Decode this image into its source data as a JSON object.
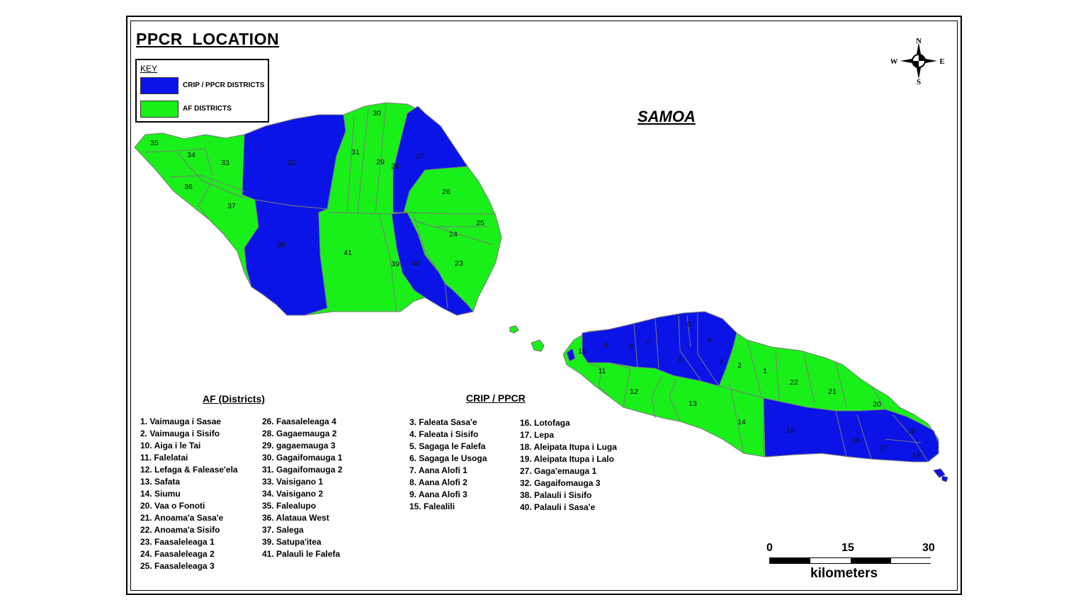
{
  "map": {
    "title": "PPCR  LOCATION",
    "country": "SAMOA",
    "colors": {
      "crip_ppcr": "#0a14e6",
      "af": "#19f019",
      "boundary": "#7a7a7a",
      "coast": "#555555"
    }
  },
  "legend": {
    "title": "KEY",
    "items": [
      {
        "label": "CRIP / PPCR DISTRICTS",
        "color": "#0a14e6"
      },
      {
        "label": "AF DISTRICTS",
        "color": "#19f019"
      }
    ]
  },
  "compass": {
    "n": "N",
    "s": "S",
    "e": "E",
    "w": "W"
  },
  "district_labels": [
    "1",
    "2",
    "3",
    "4",
    "5",
    "6",
    "7",
    "8",
    "9",
    "10",
    "11",
    "12",
    "13",
    "14",
    "15",
    "16",
    "17",
    "18",
    "19",
    "20",
    "21",
    "22",
    "23",
    "24",
    "25",
    "26",
    "27",
    "28",
    "29",
    "30",
    "31",
    "32",
    "33",
    "34",
    "35",
    "36",
    "37",
    "38",
    "39",
    "40",
    "41"
  ],
  "af_list": {
    "heading": "AF (Districts)",
    "col1": [
      "1. Vaimauga i Sasae",
      "2. Vaimauga i Sisifo",
      "10. Aiga i le Tai",
      "11. Falelatai",
      "12. Lefaga & Falease'ela",
      "13. Safata",
      "14. Siumu",
      "20. Vaa o Fonoti",
      "21. Anoama'a Sasa'e",
      "22. Anoama'a Sisifo",
      "23. Faasaleleaga 1",
      "24. Faasaleleaga 2",
      "25. Faasaleleaga 3"
    ],
    "col2": [
      "26. Faasaleleaga 4",
      "28. Gagaemauga 2",
      "29. gagaemauga 3",
      "30. Gagaifomauga 1",
      "31. Gagaifomauga 2",
      "33. Vaisigano 1",
      "34. Vaisigano 2",
      "35. Falealupo",
      "36. Alataua West",
      "37. Salega",
      "39. Satupa'itea",
      "41. Palauli le Falefa"
    ]
  },
  "crip_list": {
    "heading": "CRIP / PPCR",
    "col1": [
      "3. Faleata Sasa'e",
      "4. Faleata i Sisifo",
      "5. Sagaga le Falefa",
      "6. Sagaga le Usoga",
      "7. Aana Alofi 1",
      "8. Aana Alofi 2",
      "9. Aana Alofi 3",
      "15. Falealili"
    ],
    "col2": [
      "16. Lotofaga",
      "17. Lepa",
      "18. Aleipata Itupa i Luga",
      "19. Aleipata Itupa i Lalo",
      "27. Gaga'emauga 1",
      "32. Gagaifomauga 3",
      "38. Palauli i Sisifo",
      "40. Palauli i Sasa'e"
    ]
  },
  "scale": {
    "ticks": [
      "0",
      "15",
      "30"
    ],
    "unit": "kilometers"
  }
}
